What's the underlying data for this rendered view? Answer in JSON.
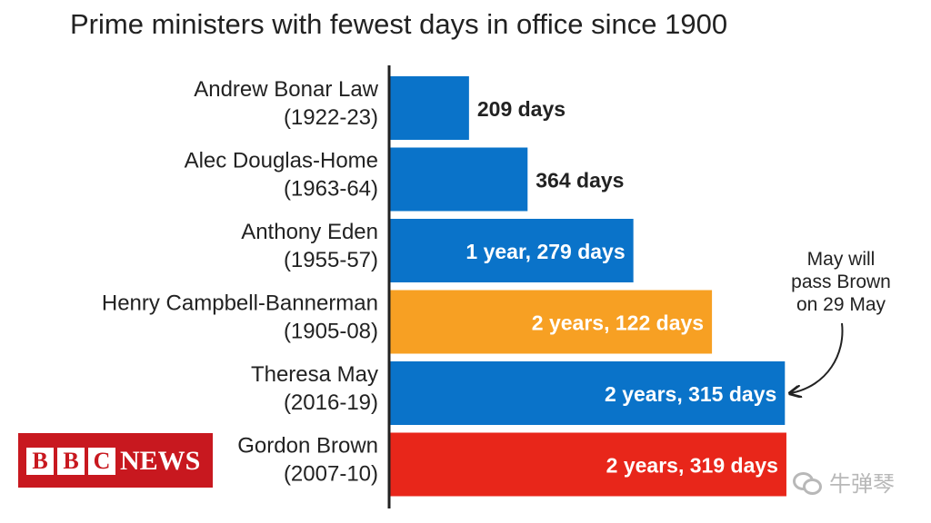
{
  "chart_data": {
    "type": "bar",
    "orientation": "horizontal",
    "title": "Prime ministers with fewest days in office since 1900",
    "xlabel": "",
    "ylabel": "",
    "unit": "days",
    "xlim": [
      0,
      1090
    ],
    "grid": false,
    "bars": [
      {
        "name": "Andrew Bonar Law",
        "years": "(1922-23)",
        "days": 209,
        "label": "209 days",
        "color": "#0a73c9",
        "label_inside": false
      },
      {
        "name": "Alec Douglas-Home",
        "years": "(1963-64)",
        "days": 364,
        "label": "364 days",
        "color": "#0a73c9",
        "label_inside": false
      },
      {
        "name": "Anthony Eden",
        "years": "(1955-57)",
        "days": 644,
        "label": "1 year, 279 days",
        "color": "#0a73c9",
        "label_inside": true
      },
      {
        "name": "Henry Campbell-Bannerman",
        "years": "(1905-08)",
        "days": 852,
        "label": "2 years, 122 days",
        "color": "#f7a023",
        "label_inside": true
      },
      {
        "name": "Theresa May",
        "years": "(2016-19)",
        "days": 1045,
        "label": "2 years, 315 days",
        "color": "#0a73c9",
        "label_inside": true
      },
      {
        "name": "Gordon Brown",
        "years": "(2007-10)",
        "days": 1049,
        "label": "2 years, 319 days",
        "color": "#e8261a",
        "label_inside": true
      }
    ],
    "annotation": {
      "lines": [
        "May will",
        "pass Brown",
        "on 29 May"
      ],
      "points_to": "Theresa May"
    }
  },
  "logo": {
    "letters": [
      "B",
      "B",
      "C"
    ],
    "text": "NEWS"
  },
  "watermark": {
    "text": "牛弹琴"
  },
  "colors": {
    "axis": "#222222",
    "label_dark": "#222222",
    "label_light": "#ffffff"
  }
}
